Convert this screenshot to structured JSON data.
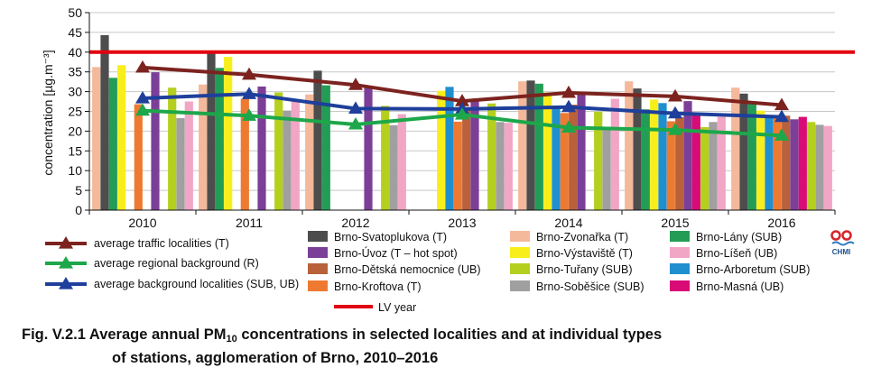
{
  "chart_data": {
    "type": "bar",
    "ylabel": "concentration [µg.m⁻³]",
    "ylim": [
      0,
      50
    ],
    "yticks": [
      0,
      5,
      10,
      15,
      20,
      25,
      30,
      35,
      40,
      45,
      50
    ],
    "categories": [
      "2010",
      "2011",
      "2012",
      "2013",
      "2014",
      "2015",
      "2016"
    ],
    "grid": true,
    "series": [
      {
        "name": "Brno-Zvonařka (T)",
        "color": "#f4b89b",
        "values": [
          36.2,
          31.8,
          29.3,
          null,
          32.6,
          32.6,
          31.0
        ]
      },
      {
        "name": "Brno-Svatoplukova (T)",
        "color": "#4d4d4d",
        "values": [
          44.3,
          39.8,
          35.3,
          null,
          32.8,
          30.8,
          29.5
        ]
      },
      {
        "name": "Brno-Lány (SUB)",
        "color": "#239d55",
        "values": [
          33.5,
          36.0,
          31.6,
          null,
          32.0,
          25.5,
          27.0
        ]
      },
      {
        "name": "Brno-Výstaviště (T)",
        "color": "#f8ee1b",
        "values": [
          36.7,
          38.8,
          null,
          30.2,
          29.8,
          28.0,
          25.2
        ]
      },
      {
        "name": "Brno-Arboretum (SUB)",
        "color": "#1f8fd0",
        "values": [
          null,
          null,
          null,
          31.2,
          25.7,
          27.1,
          24.0
        ]
      },
      {
        "name": "Brno-Kroftova (T)",
        "color": "#ee7a31",
        "values": [
          26.8,
          28.2,
          null,
          22.4,
          24.6,
          22.5,
          24.0
        ]
      },
      {
        "name": "Brno-Dětská nemocnice (UB)",
        "color": "#b8613b",
        "values": [
          null,
          null,
          null,
          25.9,
          26.7,
          23.5,
          23.9
        ]
      },
      {
        "name": "Brno-Úvoz (T – hot spot)",
        "color": "#7b3f98",
        "values": [
          34.9,
          31.3,
          30.9,
          28.2,
          29.5,
          27.6,
          23.0
        ]
      },
      {
        "name": "Brno-Masná (UB)",
        "color": "#d80b77",
        "values": [
          null,
          null,
          null,
          null,
          null,
          24.7,
          23.6
        ]
      },
      {
        "name": "Brno-Tuřany (SUB)",
        "color": "#b5cf1e",
        "values": [
          31.0,
          29.8,
          26.4,
          27.0,
          24.9,
          21.0,
          22.3
        ]
      },
      {
        "name": "Brno-Soběšice (SUB)",
        "color": "#a0a0a0",
        "values": [
          23.3,
          25.2,
          21.5,
          22.3,
          20.7,
          22.3,
          21.6
        ]
      },
      {
        "name": "Brno-Líšeň (UB)",
        "color": "#f2a6c6",
        "values": [
          27.5,
          27.8,
          24.3,
          22.1,
          28.2,
          23.6,
          21.3
        ]
      }
    ],
    "lines": [
      {
        "name": "average traffic localities (T)",
        "color": "#7c231f",
        "values": [
          36.1,
          34.3,
          31.7,
          27.6,
          29.7,
          28.8,
          26.6
        ]
      },
      {
        "name": "average background localities (SUB, UB)",
        "color": "#1e3f9b",
        "values": [
          28.3,
          29.4,
          25.7,
          25.6,
          26.1,
          24.5,
          23.6
        ]
      },
      {
        "name": "average regional background (R)",
        "color": "#1da74a",
        "values": [
          25.2,
          23.9,
          21.7,
          24.2,
          20.9,
          20.3,
          18.9
        ]
      }
    ],
    "limit": {
      "name": "LV year",
      "value": 40,
      "color": "#e3000f"
    }
  },
  "legend": {
    "lines": [
      "average traffic localities (T)",
      "average regional background (R)",
      "average background localities (SUB, UB)"
    ],
    "col1": [
      "Brno-Svatoplukova (T)",
      "Brno-Úvoz (T – hot spot)",
      "Brno-Dětská nemocnice (UB)",
      "Brno-Kroftova (T)"
    ],
    "col2": [
      "Brno-Zvonařka (T)",
      "Brno-Výstaviště (T)",
      "Brno-Tuřany (SUB)",
      "Brno-Soběšice (SUB)"
    ],
    "col3": [
      "Brno-Lány (SUB)",
      "Brno-Líšeň (UB)",
      "Brno-Arboretum (SUB)",
      "Brno-Masná (UB)"
    ],
    "limit_label": "LV year"
  },
  "logo": {
    "text": "CHMI",
    "color": "#d8232a",
    "text_color": "#1a4f8b"
  },
  "caption": {
    "prefix": "Fig. V.2.1  Average annual PM",
    "sub": "10",
    "rest": " concentrations in selected localities and at individual types",
    "line2": "of stations, agglomeration of Brno, 2010–2016"
  }
}
